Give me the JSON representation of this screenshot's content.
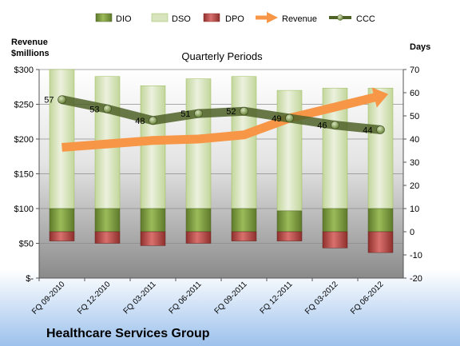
{
  "chart_data": {
    "type": "bar",
    "title": "Quarterly Periods",
    "company": "Healthcare Services Group",
    "left_axis_label_line1": "Revenue",
    "left_axis_label_line2": "$millions",
    "right_axis_label": "Days",
    "categories": [
      "FQ 09-2010",
      "FQ 12-2010",
      "FQ 03-2011",
      "FQ 06-2011",
      "FQ 09-2011",
      "FQ 12-2011",
      "FQ 03-2012",
      "FQ 06-2012"
    ],
    "left_ticks": [
      "$-",
      "$50",
      "$100",
      "$150",
      "$200",
      "$250",
      "$300"
    ],
    "right_ticks": [
      "-20",
      "-10",
      "0",
      "10",
      "20",
      "30",
      "40",
      "50",
      "60",
      "70"
    ],
    "left_ylim": [
      0,
      300
    ],
    "right_ylim": [
      -20,
      70
    ],
    "series": [
      {
        "name": "DIO",
        "axis": "right",
        "values": [
          10,
          10,
          10,
          10,
          10,
          9,
          10,
          10
        ],
        "color": "#77933C"
      },
      {
        "name": "DSO",
        "axis": "right",
        "values": [
          60,
          57,
          53,
          56,
          57,
          52,
          52,
          52
        ],
        "color": "#D7E4BD"
      },
      {
        "name": "DPO",
        "axis": "right",
        "values": [
          -4,
          -5,
          -6,
          -5,
          -4,
          -4,
          -7,
          -9
        ],
        "color": "#C0504D"
      },
      {
        "name": "Revenue",
        "axis": "left",
        "values": [
          188,
          193,
          198,
          200,
          206,
          230,
          246,
          262
        ],
        "color": "#F79646"
      },
      {
        "name": "CCC",
        "axis": "right",
        "values": [
          57,
          53,
          48,
          51,
          52,
          49,
          46,
          44
        ],
        "color": "#4F6228"
      }
    ],
    "ccc_labels": [
      "57",
      "53",
      "48",
      "51",
      "52",
      "49",
      "46",
      "44"
    ],
    "legend_position": "top"
  }
}
